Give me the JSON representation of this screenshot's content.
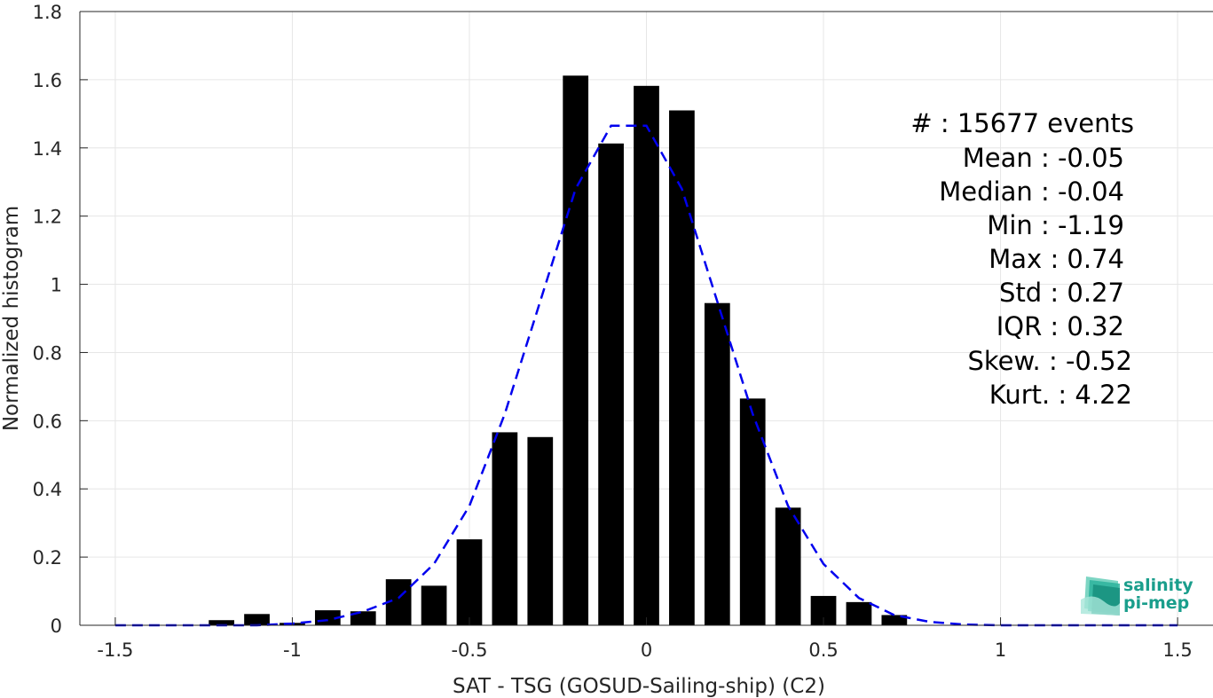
{
  "chart_data": {
    "type": "bar",
    "xlabel": "SAT - TSG (GOSUD-Sailing-ship) (C2)",
    "ylabel": "Normalized histogram",
    "xlim": [
      -1.6,
      1.6
    ],
    "ylim": [
      0,
      1.8
    ],
    "xticks": [
      "-1.5",
      "-1",
      "-0.5",
      "0",
      "0.5",
      "1",
      "1.5"
    ],
    "yticks": [
      "0",
      "0.2",
      "0.4",
      "0.6",
      "0.8",
      "1",
      "1.2",
      "1.4",
      "1.6",
      "1.8"
    ],
    "bin_width": 0.1,
    "bars": {
      "x": [
        -1.2,
        -1.1,
        -1.0,
        -0.9,
        -0.8,
        -0.7,
        -0.6,
        -0.5,
        -0.4,
        -0.3,
        -0.2,
        -0.1,
        0.0,
        0.1,
        0.2,
        0.3,
        0.4,
        0.5,
        0.6,
        0.7
      ],
      "values": [
        0.015,
        0.033,
        0.007,
        0.044,
        0.041,
        0.135,
        0.116,
        0.252,
        0.566,
        0.552,
        1.612,
        1.413,
        1.582,
        1.51,
        0.945,
        0.665,
        0.345,
        0.086,
        0.068,
        0.03
      ],
      "color": "#000000"
    },
    "fit": {
      "style": "dashed",
      "color": "#0000ee",
      "x": [
        -1.5,
        -1.4,
        -1.3,
        -1.2,
        -1.1,
        -1.0,
        -0.9,
        -0.8,
        -0.7,
        -0.6,
        -0.5,
        -0.4,
        -0.3,
        -0.2,
        -0.1,
        0.0,
        0.1,
        0.2,
        0.3,
        0.4,
        0.5,
        0.6,
        0.7,
        0.8,
        0.9,
        1.0,
        1.1,
        1.2,
        1.3,
        1.4,
        1.5
      ],
      "y": [
        0.0,
        0.0,
        0.0,
        0.0,
        0.0,
        0.005,
        0.015,
        0.04,
        0.08,
        0.18,
        0.35,
        0.62,
        0.95,
        1.28,
        1.465,
        1.465,
        1.28,
        0.95,
        0.62,
        0.35,
        0.18,
        0.08,
        0.03,
        0.01,
        0.002,
        0.0,
        0.0,
        0.0,
        0.0,
        0.0,
        0.0
      ]
    },
    "grid": true
  },
  "stats": [
    "#  : 15677 events",
    "Mean : -0.05",
    "Median : -0.04",
    "Min : -1.19",
    "Max : 0.74",
    "Std : 0.27",
    "IQR : 0.32",
    "Skew. : -0.52",
    "Kurt. : 4.22"
  ],
  "logo": {
    "line1": "salinity",
    "line2": "pi-mep",
    "color": "#1a9e8c"
  }
}
